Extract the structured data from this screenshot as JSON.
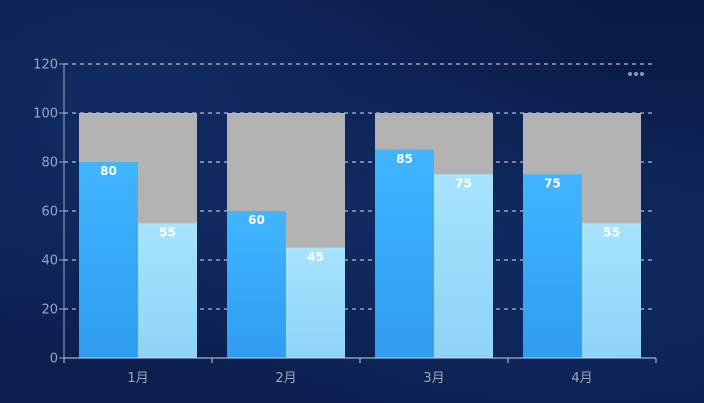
{
  "chart_data": {
    "type": "bar",
    "categories": [
      "1月",
      "2月",
      "3月",
      "4月"
    ],
    "series": [
      {
        "values": [
          80,
          60,
          85,
          75
        ]
      },
      {
        "values": [
          55,
          45,
          75,
          55
        ]
      }
    ],
    "background_bar_value": 100,
    "ylim": [
      0,
      120
    ],
    "yticks": [
      0,
      20,
      40,
      60,
      80,
      100,
      120
    ],
    "grid": true,
    "colors": {
      "series1_top": "#3fb6ff",
      "series1_bottom": "#2f9df0",
      "series2_top": "#a6e4ff",
      "series2_bottom": "#8fd3f6",
      "background_bar": "#b3b3b3",
      "grid": "#ffffff",
      "axis": "#9aa7c2"
    }
  },
  "toolbar": {
    "more_icon": "more-horizontal-icon"
  }
}
